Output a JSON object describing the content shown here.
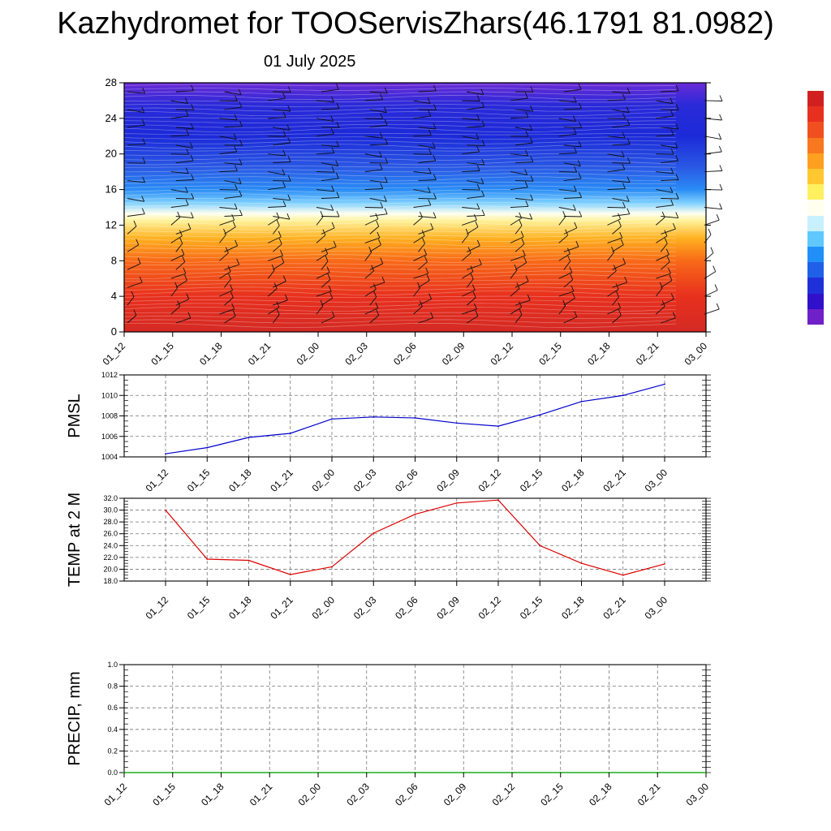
{
  "header": {
    "title": "Kazhydromet for TOOServisZhars(46.1791 81.0982)",
    "date": "01 July 2025"
  },
  "colorbar": {
    "colors": [
      "#d02020",
      "#e83020",
      "#f05020",
      "#f87820",
      "#ffa020",
      "#ffc830",
      "#fff060",
      "#fffff0",
      "#c8f0ff",
      "#60c8ff",
      "#2090f8",
      "#2060e8",
      "#2030d8",
      "#3010c8",
      "#7020c8"
    ]
  },
  "chart_data": [
    {
      "type": "heatmap",
      "title": "",
      "xlabel": "",
      "ylabel": "",
      "categories": [
        "01_12",
        "01_15",
        "01_18",
        "01_21",
        "02_00",
        "02_03",
        "02_06",
        "02_09",
        "02_12",
        "02_15",
        "02_18",
        "02_21",
        "03_00"
      ],
      "ylim": [
        0,
        28
      ],
      "yticks": [
        "0",
        "4",
        "8",
        "12",
        "16",
        "20",
        "24",
        "28"
      ],
      "field_by_height": [
        {
          "y": 0,
          "color": "#d42a24"
        },
        {
          "y": 4,
          "color": "#e8301e"
        },
        {
          "y": 8,
          "color": "#f86a18"
        },
        {
          "y": 10.5,
          "color": "#ffb020"
        },
        {
          "y": 12.5,
          "color": "#fff29a"
        },
        {
          "y": 13.3,
          "color": "#fdfff0"
        },
        {
          "y": 14.5,
          "color": "#7fd0ff"
        },
        {
          "y": 16,
          "color": "#2a8cf5"
        },
        {
          "y": 18.5,
          "color": "#2a58e4"
        },
        {
          "y": 22,
          "color": "#1c2ad8"
        },
        {
          "y": 25.5,
          "color": "#2a2ad8"
        },
        {
          "y": 28,
          "color": "#6a2ad6"
        }
      ],
      "overlay": "wind barbs"
    },
    {
      "type": "line",
      "ylabel": "PMSL",
      "categories": [
        "01_12",
        "01_15",
        "01_18",
        "01_21",
        "02_00",
        "02_03",
        "02_06",
        "02_09",
        "02_12",
        "02_15",
        "02_18",
        "02_21",
        "03_00"
      ],
      "series": [
        {
          "color": "#0000cc",
          "values": [
            1004.3,
            1004.9,
            1005.9,
            1006.3,
            1007.7,
            1007.9,
            1007.8,
            1007.3,
            1007.0,
            1008.1,
            1009.4,
            1010.0,
            1011.1
          ]
        }
      ],
      "ylim": [
        1004,
        1012
      ],
      "yticks": [
        "1004",
        "1006",
        "1008",
        "1010",
        "1012"
      ],
      "grid": true
    },
    {
      "type": "line",
      "ylabel": "TEMP at 2 M",
      "categories": [
        "01_12",
        "01_15",
        "01_18",
        "01_21",
        "02_00",
        "02_03",
        "02_06",
        "02_09",
        "02_12",
        "02_15",
        "02_18",
        "02_21",
        "03_00"
      ],
      "series": [
        {
          "color": "#dd0000",
          "values": [
            30.0,
            21.7,
            21.5,
            19.1,
            20.4,
            26.1,
            29.3,
            31.2,
            31.7,
            24.0,
            21.0,
            19.0,
            20.9
          ]
        }
      ],
      "ylim": [
        18,
        32
      ],
      "yticks": [
        "18.0",
        "20.0",
        "22.0",
        "24.0",
        "26.0",
        "28.0",
        "30.0",
        "32.0"
      ],
      "grid": true
    },
    {
      "type": "line",
      "ylabel": "PRECIP, mm",
      "categories": [
        "01_12",
        "01_15",
        "01_18",
        "01_21",
        "02_00",
        "02_03",
        "02_06",
        "02_09",
        "02_12",
        "02_15",
        "02_18",
        "02_21",
        "03_00"
      ],
      "series": [
        {
          "color": "#00aa00",
          "values": [
            0,
            0,
            0,
            0,
            0,
            0,
            0,
            0,
            0,
            0,
            0,
            0,
            0
          ]
        }
      ],
      "ylim": [
        0,
        1
      ],
      "yticks": [
        "0.0",
        "0.2",
        "0.4",
        "0.6",
        "0.8",
        "1.0"
      ],
      "grid": true
    }
  ]
}
